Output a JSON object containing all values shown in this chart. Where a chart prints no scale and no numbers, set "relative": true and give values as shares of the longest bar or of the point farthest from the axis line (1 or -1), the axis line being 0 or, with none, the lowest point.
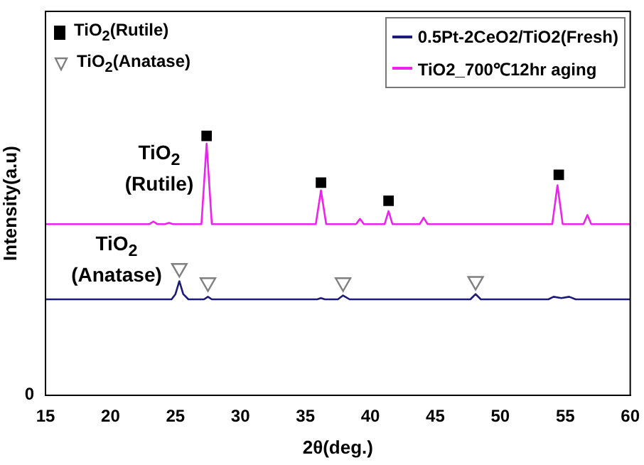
{
  "chart_data": {
    "type": "line",
    "relative": true,
    "xlabel": "2θ(deg.)",
    "ylabel": "Intensity(a.u)",
    "xlim": [
      15,
      60
    ],
    "xticks": [
      15,
      20,
      25,
      30,
      35,
      40,
      45,
      50,
      55,
      60
    ],
    "grid": false,
    "legend": "top right",
    "marker": "none",
    "line_style": "solid",
    "series": [
      {
        "name": "0.5Pt-2CeO2/TiO2(Fresh)",
        "color": "#1c1c78",
        "x": [
          15,
          20,
          24.7,
          25.0,
          25.3,
          25.6,
          26.0,
          27.2,
          27.5,
          27.8,
          35.9,
          36.2,
          36.5,
          37.5,
          37.9,
          38.4,
          47.7,
          48.1,
          48.5,
          53.7,
          54.1,
          54.7,
          55.3,
          55.8,
          60
        ],
        "values": [
          0.37,
          0.37,
          0.37,
          0.39,
          0.44,
          0.39,
          0.37,
          0.37,
          0.38,
          0.37,
          0.37,
          0.375,
          0.37,
          0.37,
          0.385,
          0.37,
          0.37,
          0.39,
          0.37,
          0.37,
          0.38,
          0.375,
          0.38,
          0.37,
          0.37
        ]
      },
      {
        "name": "TiO2_700℃12hr aging",
        "color": "#ee22ee",
        "x": [
          15,
          23.0,
          23.3,
          23.6,
          24.2,
          24.5,
          24.8,
          27.0,
          27.4,
          27.8,
          35.8,
          36.2,
          36.6,
          38.9,
          39.2,
          39.5,
          41.1,
          41.4,
          41.7,
          43.8,
          44.1,
          44.4,
          54.0,
          54.4,
          54.8,
          56.4,
          56.7,
          57.0,
          60
        ],
        "values": [
          0.66,
          0.66,
          0.67,
          0.66,
          0.66,
          0.665,
          0.66,
          0.66,
          0.97,
          0.66,
          0.66,
          0.79,
          0.66,
          0.66,
          0.68,
          0.66,
          0.66,
          0.71,
          0.66,
          0.66,
          0.685,
          0.66,
          0.66,
          0.81,
          0.66,
          0.66,
          0.695,
          0.66,
          0.66
        ]
      },
      {
        "name": "TiO$_{2}$(Rutile)",
        "type": "scatter",
        "marker": "square",
        "color": "#000000",
        "x": [
          27.4,
          36.2,
          41.4,
          54.5
        ],
        "values": [
          1,
          0.82,
          0.75,
          0.85
        ]
      },
      {
        "name": "TiO$_{2}$(Anatase)",
        "type": "scatter",
        "marker": "triangle",
        "color": "#808080",
        "x": [
          25.3,
          27.5,
          37.9,
          48.1
        ],
        "values": [
          0.49,
          0.435,
          0.435,
          0.44
        ]
      }
    ],
    "annotations": [
      "TiO$_{2}$ (Rutile)",
      "TiO$_{2}$ (Anatase)",
      "0"
    ]
  }
}
